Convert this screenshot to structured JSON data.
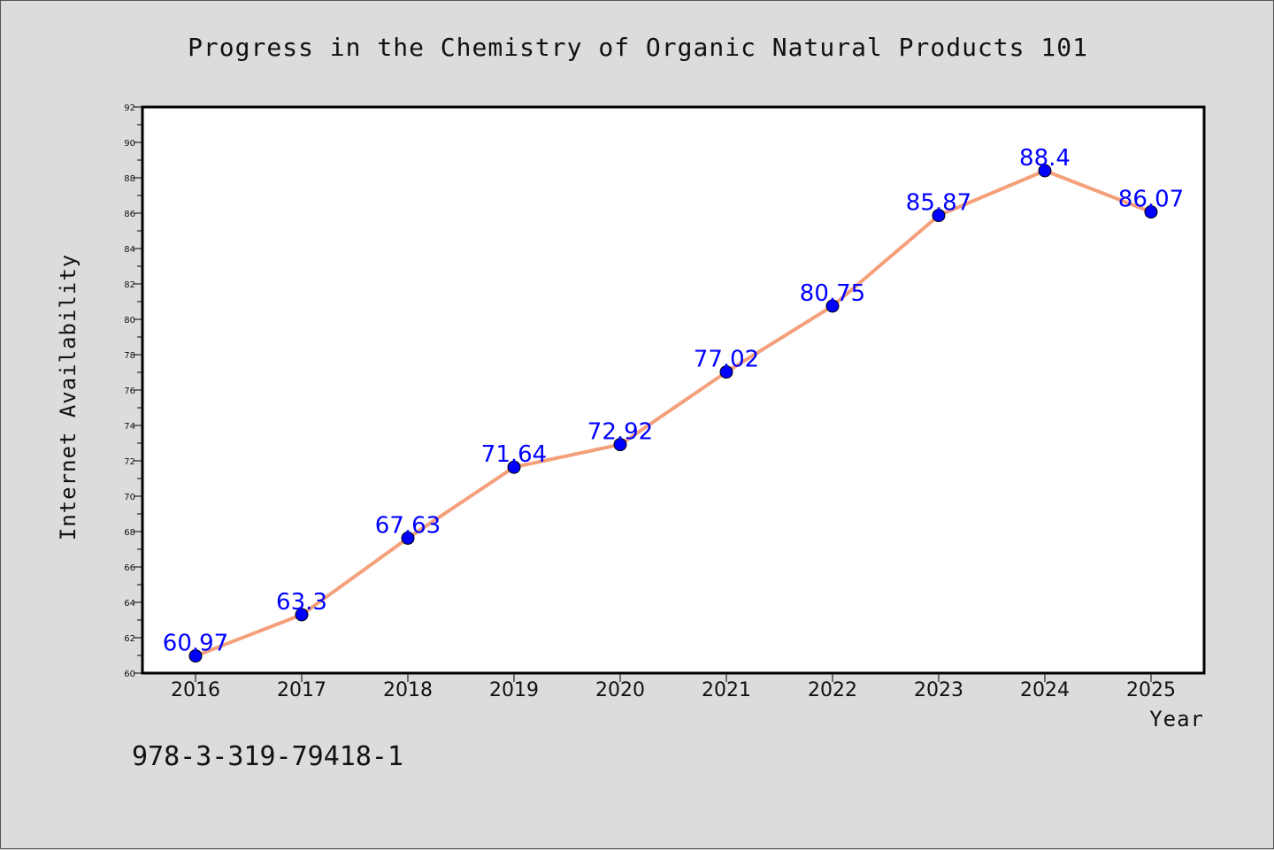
{
  "chart_data": {
    "type": "line",
    "title": "Progress in the Chemistry of Organic Natural Products 101",
    "xlabel": "Year",
    "ylabel": "Internet Availability",
    "x": [
      "2016",
      "2017",
      "2018",
      "2019",
      "2020",
      "2021",
      "2022",
      "2023",
      "2024",
      "2025"
    ],
    "series": [
      {
        "values": [
          60.97,
          63.3,
          67.63,
          71.64,
          72.92,
          77.02,
          80.75,
          85.87,
          88.4,
          86.07
        ],
        "line_color": "#f4a07a",
        "marker_color": "#0000ff"
      }
    ],
    "data_labels": [
      "60.97",
      "63.3",
      "67.63",
      "71.64",
      "72.92",
      "77.02",
      "80.75",
      "85.87",
      "88.4",
      "86.07"
    ],
    "ylim": [
      60,
      92
    ],
    "yticks": [
      "60",
      "62",
      "64",
      "66",
      "68",
      "70",
      "72",
      "74",
      "76",
      "78",
      "80",
      "82",
      "84",
      "86",
      "88",
      "90",
      "92"
    ],
    "grid": false
  },
  "footer": {
    "text": "978-3-319-79418-1"
  },
  "colors": {
    "background": "#dcdcdc",
    "plot_background": "#ffffff",
    "line": "#f4a07a",
    "marker": "#0000ff",
    "data_label": "#0000ff"
  }
}
